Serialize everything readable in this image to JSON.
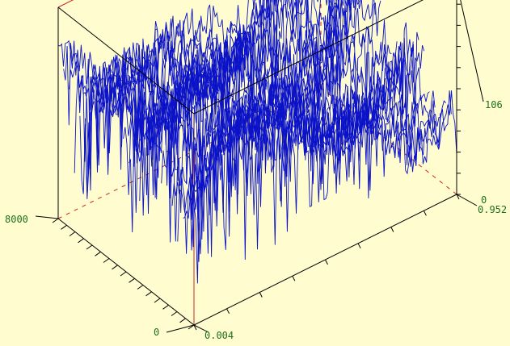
{
  "colors": {
    "background": "#fffdcf",
    "box": "#000000",
    "axis_red": "#cc2222",
    "label_green": "#1f6e1f",
    "surface": "#0b12c8"
  },
  "chart_data": {
    "type": "3d-surface-waterfall",
    "title": "",
    "axes": {
      "x": {
        "min_label": "0",
        "max_label": "8000",
        "range": [
          0,
          8000
        ]
      },
      "y": {
        "min_label": "0.004",
        "max_label": "0.952",
        "range": [
          0.004,
          0.952
        ]
      },
      "z": {
        "min_label": "0",
        "max_label": "106",
        "range": [
          0,
          106
        ]
      }
    },
    "tick_labels": {
      "x_min": "0",
      "x_max": "8000",
      "y_min": "0.004",
      "y_max": "0.952",
      "z_min": "0",
      "z_max": "106"
    },
    "n_traces": 26,
    "points_per_trace": 150,
    "approx_mean_level": 62,
    "approx_noise_band": [
      20,
      106
    ],
    "grid": false,
    "legend": "none"
  }
}
